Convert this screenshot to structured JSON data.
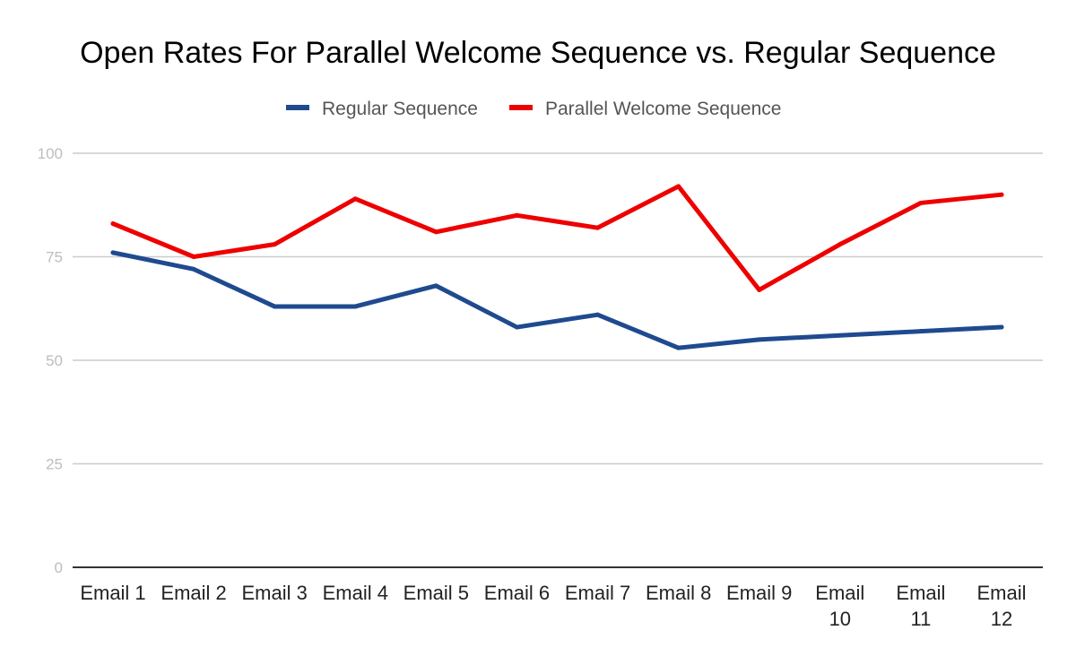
{
  "chart_data": {
    "type": "line",
    "title": "Open Rates For Parallel Welcome Sequence vs. Regular Sequence",
    "xlabel": "",
    "ylabel": "",
    "ylim": [
      0,
      100
    ],
    "yticks": [
      "0",
      "25",
      "50",
      "75",
      "100"
    ],
    "categories": [
      [
        "Email 1"
      ],
      [
        "Email 2"
      ],
      [
        "Email 3"
      ],
      [
        "Email 4"
      ],
      [
        "Email 5"
      ],
      [
        "Email 6"
      ],
      [
        "Email 7"
      ],
      [
        "Email 8"
      ],
      [
        "Email 9"
      ],
      [
        "Email",
        "10"
      ],
      [
        "Email",
        "11"
      ],
      [
        "Email",
        "12"
      ]
    ],
    "legend_position": "top",
    "grid": true,
    "series": [
      {
        "name": "Regular Sequence",
        "color": "#1f4a8f",
        "values": [
          76,
          72,
          63,
          63,
          68,
          58,
          61,
          53,
          55,
          56,
          57,
          58
        ]
      },
      {
        "name": "Parallel Welcome Sequence",
        "color": "#ee0000",
        "values": [
          83,
          75,
          78,
          89,
          81,
          85,
          82,
          92,
          67,
          78,
          88,
          90
        ]
      }
    ]
  }
}
